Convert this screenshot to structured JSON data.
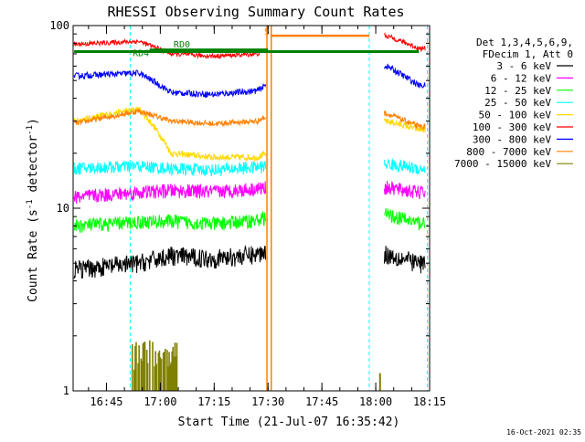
{
  "chart_data": {
    "type": "line",
    "title": "RHESSI Observing Summary Count Rates",
    "xlabel": "Start Time (21-Jul-07 16:35:42)",
    "ylabel_main": "Count Rate (s",
    "ylabel_sup": "-1",
    "ylabel_mid": " detector",
    "ylabel_sup2": "-1",
    "ylabel_end": ")",
    "x_range_min": [
      16.5953,
      18.25
    ],
    "y_scale": "log",
    "y_range": [
      1,
      100
    ],
    "x_ticks": [
      {
        "t": 16.75,
        "label": "16:45"
      },
      {
        "t": 17.0,
        "label": "17:00"
      },
      {
        "t": 17.25,
        "label": "17:15"
      },
      {
        "t": 17.5,
        "label": "17:30"
      },
      {
        "t": 17.75,
        "label": "17:45"
      },
      {
        "t": 18.0,
        "label": "18:00"
      },
      {
        "t": 18.25,
        "label": "18:15"
      }
    ],
    "y_ticks": [
      {
        "v": 1,
        "label": "1"
      },
      {
        "v": 10,
        "label": "10"
      },
      {
        "v": 100,
        "label": "100"
      }
    ],
    "legend_header": [
      "Det 1,3,4,5,6,9,",
      "FDecim 1, Att 0"
    ],
    "series": [
      {
        "name": "3 - 6 keV",
        "color": "#000000",
        "points": [
          [
            16.6,
            4.6
          ],
          [
            16.9,
            5.0
          ],
          [
            17.05,
            5.5
          ],
          [
            17.25,
            5.3
          ],
          [
            17.45,
            5.6
          ],
          [
            17.5,
            5.9
          ],
          [
            18.05,
            5.6
          ],
          [
            18.2,
            5.0
          ]
        ]
      },
      {
        "name": "6 - 12 keV",
        "color": "#ff00ff",
        "points": [
          [
            16.6,
            11.5
          ],
          [
            16.9,
            12.2
          ],
          [
            17.05,
            12.5
          ],
          [
            17.25,
            12.3
          ],
          [
            17.45,
            12.8
          ],
          [
            17.5,
            13.0
          ],
          [
            18.05,
            13.0
          ],
          [
            18.2,
            12.2
          ]
        ]
      },
      {
        "name": "12 - 25 keV",
        "color": "#00ff00",
        "points": [
          [
            16.6,
            8.0
          ],
          [
            16.9,
            8.4
          ],
          [
            17.05,
            8.5
          ],
          [
            17.25,
            8.2
          ],
          [
            17.45,
            8.6
          ],
          [
            17.5,
            9.0
          ],
          [
            18.05,
            9.2
          ],
          [
            18.2,
            8.3
          ]
        ]
      },
      {
        "name": "25 - 50 keV",
        "color": "#00ffff",
        "points": [
          [
            16.6,
            16.5
          ],
          [
            16.9,
            17.0
          ],
          [
            17.05,
            16.5
          ],
          [
            17.25,
            16.2
          ],
          [
            17.45,
            16.8
          ],
          [
            17.5,
            17.0
          ],
          [
            18.05,
            17.5
          ],
          [
            18.2,
            16.5
          ]
        ]
      },
      {
        "name": "50 - 100 keV",
        "color": "#ffd700",
        "points": [
          [
            16.6,
            30
          ],
          [
            16.9,
            35
          ],
          [
            17.05,
            20
          ],
          [
            17.25,
            19
          ],
          [
            17.45,
            19
          ],
          [
            17.5,
            20
          ],
          [
            18.05,
            30
          ],
          [
            18.2,
            27
          ]
        ]
      },
      {
        "name": "100 - 300 keV",
        "color": "#ff0000",
        "points": [
          [
            16.6,
            79
          ],
          [
            16.9,
            82
          ],
          [
            17.05,
            70
          ],
          [
            17.25,
            68
          ],
          [
            17.45,
            70
          ],
          [
            17.5,
            75
          ],
          [
            18.05,
            88
          ],
          [
            18.2,
            75
          ]
        ]
      },
      {
        "name": "300 - 800 keV",
        "color": "#0000ff",
        "points": [
          [
            16.6,
            53
          ],
          [
            16.9,
            55
          ],
          [
            17.05,
            43
          ],
          [
            17.25,
            42
          ],
          [
            17.45,
            44
          ],
          [
            17.5,
            48
          ],
          [
            18.05,
            60
          ],
          [
            18.2,
            47
          ]
        ]
      },
      {
        "name": "800 - 7000 keV",
        "color": "#ff8000",
        "points": [
          [
            16.6,
            29
          ],
          [
            16.9,
            34
          ],
          [
            17.05,
            30
          ],
          [
            17.25,
            29
          ],
          [
            17.45,
            30
          ],
          [
            17.5,
            32
          ],
          [
            18.05,
            33
          ],
          [
            18.2,
            28
          ]
        ]
      },
      {
        "name": "7000 - 15000 keV",
        "color": "#808000",
        "points": [
          [
            16.87,
            1.5
          ],
          [
            17.0,
            1.6
          ],
          [
            17.05,
            1.5
          ],
          [
            18.02,
            1.2
          ]
        ]
      }
    ],
    "attenuator_level": {
      "color": "#008000",
      "value": 72,
      "x": [
        16.6,
        18.2
      ]
    },
    "rd4_segment": {
      "color": "#008000",
      "value": 74,
      "x": [
        16.95,
        17.5
      ]
    },
    "annotations": [
      {
        "label": "RD0",
        "t": 17.1,
        "v": 76,
        "color": "#008000"
      },
      {
        "label": "RD4",
        "t": 16.91,
        "v": 68,
        "color": "#008000"
      },
      {
        "label": "S",
        "t": 17.495,
        "v": 89,
        "color": "#ff8000"
      }
    ],
    "saa_block": {
      "color": "#ff8000",
      "x": [
        17.515,
        17.97
      ],
      "value": 88
    },
    "vlines": [
      {
        "t": 16.86,
        "color": "#00ffff",
        "style": "dashed"
      },
      {
        "t": 17.495,
        "color": "#ff8000",
        "style": "solid"
      },
      {
        "t": 17.515,
        "color": "#ff8000",
        "style": "solid"
      },
      {
        "t": 17.97,
        "color": "#00ffff",
        "style": "dashed"
      },
      {
        "t": 18.24,
        "color": "#00ffff",
        "style": "dashed"
      }
    ],
    "grid": false,
    "legend_position": "right"
  },
  "footer": {
    "timestamp": "16-Oct-2021 02:35"
  }
}
